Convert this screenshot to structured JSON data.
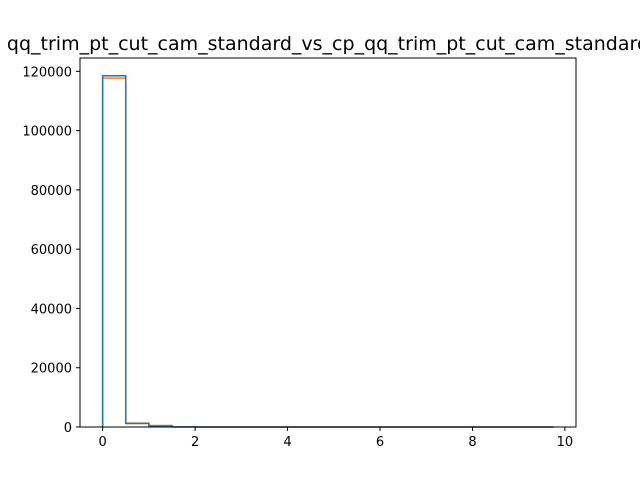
{
  "chart_data": {
    "type": "histogram",
    "title": "qq_trim_pt_cut_cam_standard_vs_cp_qq_trim_pt_cut_cam_standard",
    "xlabel": "",
    "ylabel": "",
    "xlim": [
      -0.49,
      10.24
    ],
    "ylim": [
      0,
      124500
    ],
    "xticks": [
      0,
      2,
      4,
      6,
      8,
      10
    ],
    "yticks": [
      0,
      20000,
      40000,
      60000,
      80000,
      100000,
      120000
    ],
    "grid": false,
    "legend": "none",
    "bin_edges": [
      0,
      0.5,
      1.0,
      1.5,
      2.0,
      2.5,
      3.0,
      3.5,
      4.0,
      4.5,
      5.0,
      5.5,
      6.0,
      6.5,
      7.0,
      7.5,
      8.0,
      8.5,
      9.0,
      9.5,
      9.75
    ],
    "series": [
      {
        "color": "#ff7f0e",
        "counts": [
          117700,
          1300,
          500,
          60,
          20,
          10,
          5,
          3,
          2,
          1,
          1,
          1,
          0,
          0,
          0,
          0,
          0,
          0,
          0,
          0
        ]
      },
      {
        "color": "#1f77b4",
        "counts": [
          118500,
          1200,
          300,
          40,
          15,
          8,
          4,
          2,
          1,
          1,
          1,
          0,
          0,
          0,
          0,
          0,
          0,
          0,
          0,
          0
        ]
      }
    ]
  }
}
